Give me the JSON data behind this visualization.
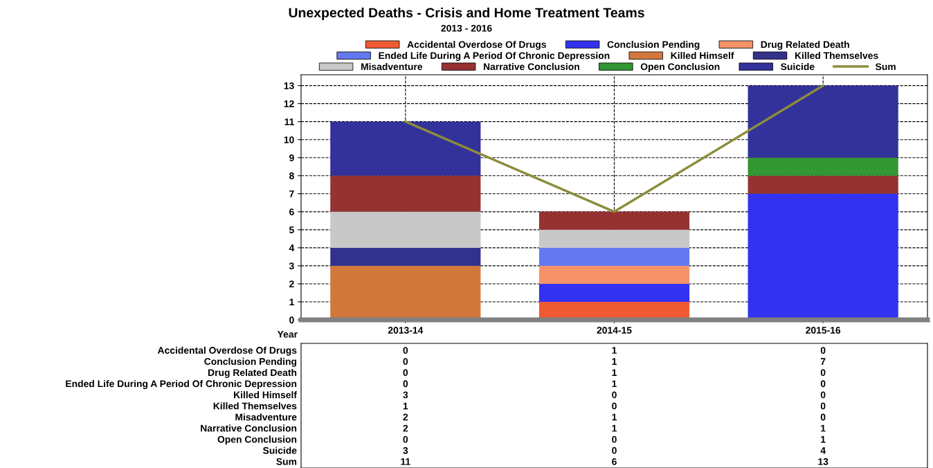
{
  "chart_data": {
    "type": "bar",
    "title": "Unexpected Deaths - Crisis and Home Treatment Teams",
    "subtitle": "2013 - 2016",
    "xlabel": "Year",
    "categories": [
      "2013-14",
      "2014-15",
      "2015-16"
    ],
    "stacked": true,
    "data_labels": true,
    "ylim": [
      0,
      13.6
    ],
    "yticks": [
      0,
      1,
      2,
      3,
      4,
      5,
      6,
      7,
      8,
      9,
      10,
      11,
      12,
      13
    ],
    "grid": true,
    "legend": "top",
    "series": [
      {
        "name": "Accidental Overdose Of Drugs",
        "color": "#f05a32",
        "values": [
          0,
          1,
          0
        ]
      },
      {
        "name": "Conclusion Pending",
        "color": "#3232f0",
        "values": [
          0,
          1,
          7
        ]
      },
      {
        "name": "Drug Related Death",
        "color": "#f5926a",
        "values": [
          0,
          1,
          0
        ]
      },
      {
        "name": "Ended Life During A Period Of Chronic Depression",
        "color": "#6478f0",
        "values": [
          0,
          1,
          0
        ]
      },
      {
        "name": "Killed Himself",
        "color": "#d2783c",
        "values": [
          3,
          0,
          0
        ]
      },
      {
        "name": "Killed Themselves",
        "color": "#32328c",
        "values": [
          1,
          0,
          0
        ]
      },
      {
        "name": "Misadventure",
        "color": "#c8c8c8",
        "values": [
          2,
          1,
          0
        ]
      },
      {
        "name": "Narrative Conclusion",
        "color": "#963232",
        "values": [
          2,
          1,
          1
        ]
      },
      {
        "name": "Open Conclusion",
        "color": "#329632",
        "values": [
          0,
          0,
          1
        ]
      },
      {
        "name": "Suicide",
        "color": "#32329a",
        "values": [
          3,
          0,
          4
        ]
      },
      {
        "name": "Sum",
        "type": "line",
        "color": "#8c8c3c",
        "values": [
          11,
          6,
          13
        ]
      }
    ]
  }
}
